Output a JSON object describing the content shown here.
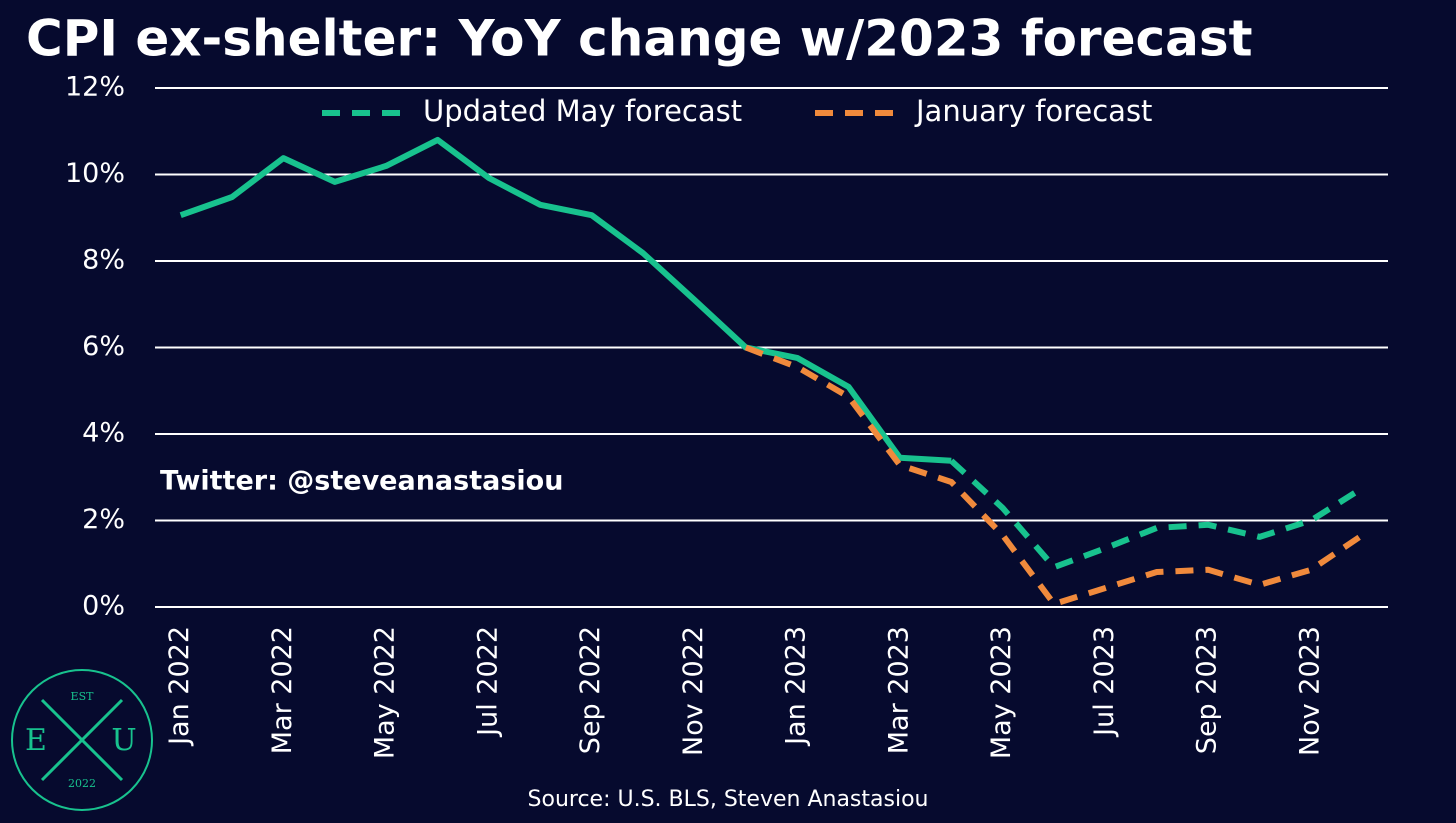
{
  "chart_data": {
    "type": "line",
    "title": "CPI ex-shelter: YoY change w/2023 forecast",
    "categories": [
      "Jan 2022",
      null,
      "Mar 2022",
      null,
      "May 2022",
      null,
      "Jul 2022",
      null,
      "Sep 2022",
      null,
      "Nov 2022",
      null,
      "Jan 2023",
      null,
      "Mar 2023",
      null,
      "May 2023",
      null,
      "Jul 2023",
      null,
      "Sep 2023",
      null,
      "Nov 2023",
      null
    ],
    "series": [
      {
        "color": "#18c28e",
        "dashed": false,
        "values": [
          9.06,
          9.48,
          10.38,
          9.83,
          10.2,
          10.8,
          9.92,
          9.3,
          9.06,
          8.18,
          7.1,
          6.0,
          5.76,
          5.09,
          3.45,
          3.38,
          null,
          null,
          null,
          null,
          null,
          null,
          null,
          null
        ]
      },
      {
        "name": "Updated May forecast",
        "color": "#18c28e",
        "dashed": true,
        "values": [
          null,
          null,
          null,
          null,
          null,
          null,
          null,
          null,
          null,
          null,
          null,
          null,
          null,
          null,
          null,
          3.38,
          2.29,
          0.92,
          1.36,
          1.83,
          1.9,
          1.62,
          2.0,
          2.75
        ]
      },
      {
        "name": "January forecast",
        "color": "#f08a3c",
        "dashed": true,
        "values": [
          null,
          null,
          null,
          null,
          null,
          null,
          null,
          null,
          null,
          null,
          null,
          6.0,
          5.55,
          4.86,
          3.28,
          2.89,
          1.66,
          0.07,
          0.44,
          0.81,
          0.86,
          0.51,
          0.86,
          1.66
        ]
      }
    ],
    "ylim": [
      0,
      12
    ],
    "yticks": [
      {
        "value": 0,
        "label": "0%"
      },
      {
        "value": 2,
        "label": "2%"
      },
      {
        "value": 4,
        "label": "4%"
      },
      {
        "value": 6,
        "label": "6%"
      },
      {
        "value": 8,
        "label": "8%"
      },
      {
        "value": 10,
        "label": "10%"
      },
      {
        "value": 12,
        "label": "12%"
      }
    ],
    "grid": true,
    "legend": "top",
    "annotations": [
      "Twitter: @steveanastasiou",
      "Source: U.S. BLS, Steven Anastasiou"
    ]
  },
  "logo": {
    "top": "EST",
    "left": "E",
    "center": "X",
    "right": "U",
    "bottom": "2022"
  }
}
